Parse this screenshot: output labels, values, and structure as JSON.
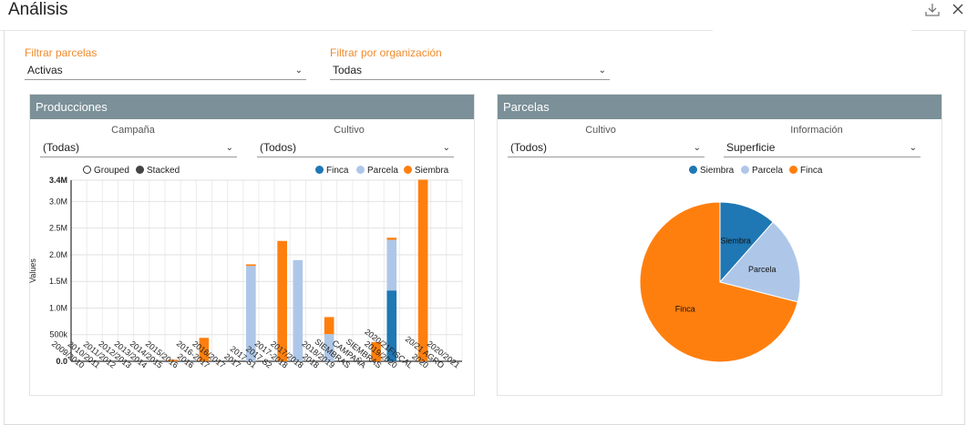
{
  "app": {
    "title": "Análisis"
  },
  "filters": {
    "parcelas_label": "Filtrar parcelas",
    "parcelas_value": "Activas",
    "org_label": "Filtrar por organización",
    "org_value": "Todas"
  },
  "producciones": {
    "title": "Producciones",
    "campana_label": "Campaña",
    "campana_value": "(Todas)",
    "cultivo_label": "Cultivo",
    "cultivo_value": "(Todos)",
    "mode_grouped": "Grouped",
    "mode_stacked": "Stacked"
  },
  "parcelas": {
    "title": "Parcelas",
    "cultivo_label": "Cultivo",
    "cultivo_value": "(Todos)",
    "info_label": "Información",
    "info_value": "Superficie"
  },
  "colors": {
    "finca": "#1f77b4",
    "parcela": "#aec7e8",
    "siembra": "#ff7f0e",
    "header": "#7b9098",
    "accent": "#f08a2c"
  },
  "icons": {
    "download": "download-icon",
    "close": "close-icon",
    "chevron": "chevron-down-icon"
  },
  "chart_data": [
    {
      "type": "bar",
      "stacked": true,
      "ylabel": "Values",
      "ylim": [
        0,
        3400000
      ],
      "ytick_labels": [
        "0.0",
        "500k",
        "1.0M",
        "1.5M",
        "2.0M",
        "2.5M",
        "3.0M",
        "3.4M"
      ],
      "legend_position": "top-right",
      "categories": [
        "2009/2010",
        "2010/2011",
        "2011/2012",
        "2012/2013",
        "2013/2014",
        "2014/2015",
        "2015/2016",
        "2016",
        "2016-2017",
        "2016/2017",
        "2017",
        "2017 S1",
        "2017 S2",
        "2017-2018",
        "2017/2018",
        "2018",
        "2018/2019",
        "SIEMBRAS",
        "CAMPAÑA",
        "SIEMBRAS",
        "2019/2020",
        "2020/21FISCAL",
        "2020",
        "20/21 AGRO",
        "2020/2021"
      ],
      "series": [
        {
          "name": "Finca",
          "values": [
            0,
            0,
            0,
            0,
            0,
            0,
            0,
            0,
            0,
            0,
            0,
            0,
            0,
            0,
            0,
            0,
            0,
            0,
            0,
            0,
            1330000,
            0,
            0,
            0,
            0
          ]
        },
        {
          "name": "Parcela",
          "values": [
            0,
            0,
            0,
            0,
            0,
            0,
            0,
            0,
            0,
            0,
            0,
            1790000,
            0,
            0,
            1900000,
            0,
            510000,
            0,
            0,
            0,
            950000,
            0,
            0,
            0,
            0
          ]
        },
        {
          "name": "Siembra",
          "values": [
            0,
            0,
            0,
            0,
            0,
            0,
            30000,
            0,
            440000,
            0,
            0,
            30000,
            0,
            2260000,
            0,
            0,
            320000,
            0,
            0,
            360000,
            40000,
            0,
            3410000,
            0,
            0
          ]
        }
      ]
    },
    {
      "type": "pie",
      "legend_position": "top",
      "labels": [
        "Siembra",
        "Parcela",
        "Finca"
      ],
      "values": [
        11.5,
        17.5,
        71.0
      ]
    }
  ]
}
